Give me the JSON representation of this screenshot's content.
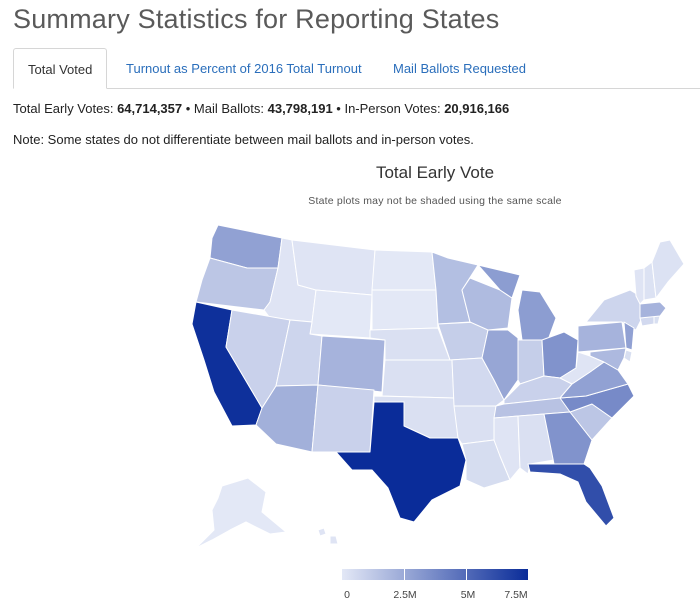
{
  "title": "Summary Statistics for Reporting States",
  "tabs": [
    {
      "label": "Total Voted",
      "active": true
    },
    {
      "label": "Turnout as Percent of 2016 Total Turnout",
      "active": false
    },
    {
      "label": "Mail Ballots Requested",
      "active": false
    }
  ],
  "summary": {
    "early_label": "Total Early Votes: ",
    "early_value": "64,714,357",
    "mail_label": " • Mail Ballots: ",
    "mail_value": "43,798,191",
    "inperson_label": " • In-Person Votes: ",
    "inperson_value": "20,916,166"
  },
  "note": "Note: Some states do not differentiate between mail ballots and in-person votes.",
  "map": {
    "title": "Total Early Vote",
    "subtitle": "State plots may not be shaded using the same scale",
    "scale": {
      "min": 0,
      "max": 7500000,
      "color_low": "#e3e8f6",
      "color_high": "#0a2c99"
    },
    "legend_labels": [
      "0",
      "2.5M",
      "5M",
      "7.5M"
    ],
    "shading_levels": {
      "CA": 0.98,
      "TX": 1.0,
      "FL": 0.82,
      "NC": 0.5,
      "GA": 0.45,
      "OH": 0.45,
      "MI": 0.4,
      "WA": 0.38,
      "NJ": 0.38,
      "VA": 0.38,
      "IL": 0.35,
      "AZ": 0.3,
      "CO": 0.28,
      "PA": 0.28,
      "MA": 0.28,
      "MD": 0.25,
      "WI": 0.24,
      "MN": 0.22,
      "OR": 0.18,
      "TN": 0.2,
      "SC": 0.18,
      "IN": 0.14,
      "IA": 0.14,
      "NM": 0.12,
      "NV": 0.12,
      "KY": 0.12,
      "NY": 0.1,
      "UT": 0.1,
      "MO": 0.08,
      "LA": 0.06,
      "AL": 0.04,
      "OK": 0.04,
      "KS": 0.04,
      "NE": 0.04,
      "AR": 0.04,
      "MS": 0.02,
      "ID": 0.02,
      "MT": 0.02,
      "WY": 0.0,
      "ND": 0.0,
      "SD": 0.0,
      "ME": 0.03,
      "VT": 0.02,
      "NH": 0.03,
      "CT": 0.08,
      "RI": 0.05,
      "DE": 0.05,
      "WV": 0.02,
      "AK": 0.0,
      "HI": 0.02
    }
  }
}
